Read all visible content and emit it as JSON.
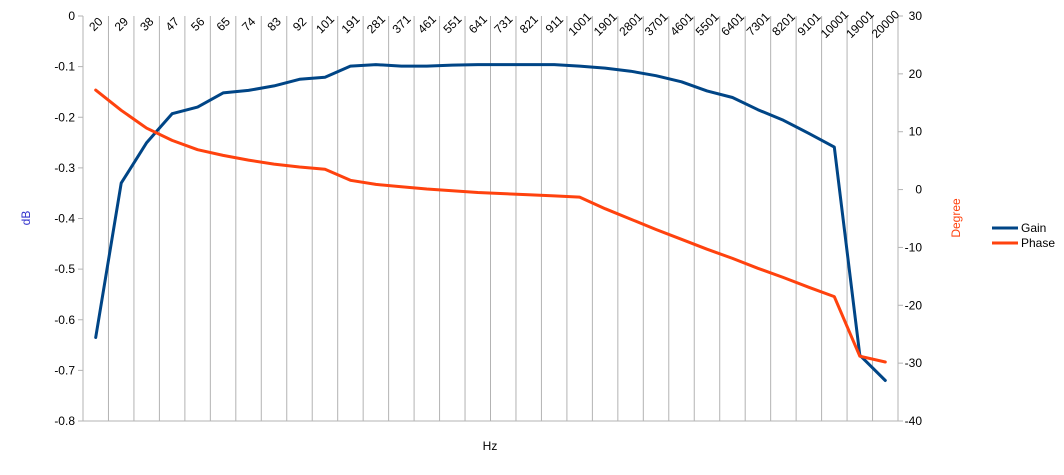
{
  "chart_data": {
    "type": "line",
    "xlabel": "Hz",
    "ylabel_left": "dB",
    "ylabel_right": "Degree",
    "categories": [
      "20",
      "29",
      "38",
      "47",
      "56",
      "65",
      "74",
      "83",
      "92",
      "101",
      "191",
      "281",
      "371",
      "461",
      "551",
      "641",
      "731",
      "821",
      "911",
      "1001",
      "1901",
      "2801",
      "3701",
      "4601",
      "5501",
      "6401",
      "7301",
      "8201",
      "9101",
      "10001",
      "19001",
      "20000"
    ],
    "y_left_range": [
      -0.8,
      0
    ],
    "y_left_ticks": [
      "0",
      "-0.1",
      "-0.2",
      "-0.3",
      "-0.4",
      "-0.5",
      "-0.6",
      "-0.7",
      "-0.8"
    ],
    "y_right_range": [
      -40,
      30
    ],
    "y_right_ticks": [
      "30",
      "20",
      "10",
      "0",
      "-10",
      "-20",
      "-30",
      "-40"
    ],
    "grid": "vertical",
    "legend_position": "right",
    "series": [
      {
        "name": "Gain",
        "axis": "left",
        "color": "#004586",
        "values": [
          -0.635,
          -0.33,
          -0.25,
          -0.193,
          -0.18,
          -0.152,
          -0.147,
          -0.138,
          -0.125,
          -0.121,
          -0.099,
          -0.096,
          -0.099,
          -0.099,
          -0.097,
          -0.096,
          -0.096,
          -0.096,
          -0.096,
          -0.099,
          -0.103,
          -0.109,
          -0.118,
          -0.13,
          -0.148,
          -0.161,
          -0.185,
          -0.206,
          -0.232,
          -0.259,
          -0.67,
          -0.72
        ]
      },
      {
        "name": "Phase",
        "axis": "right",
        "color": "#ff420e",
        "values": [
          17.2,
          13.7,
          10.6,
          8.5,
          6.9,
          5.9,
          5.1,
          4.4,
          3.9,
          3.5,
          1.6,
          0.9,
          0.5,
          0.1,
          -0.2,
          -0.5,
          -0.7,
          -0.9,
          -1.1,
          -1.3,
          -3.3,
          -5.1,
          -6.9,
          -8.6,
          -10.3,
          -11.9,
          -13.6,
          -15.2,
          -16.9,
          -18.5,
          -28.8,
          -29.8
        ]
      }
    ]
  }
}
